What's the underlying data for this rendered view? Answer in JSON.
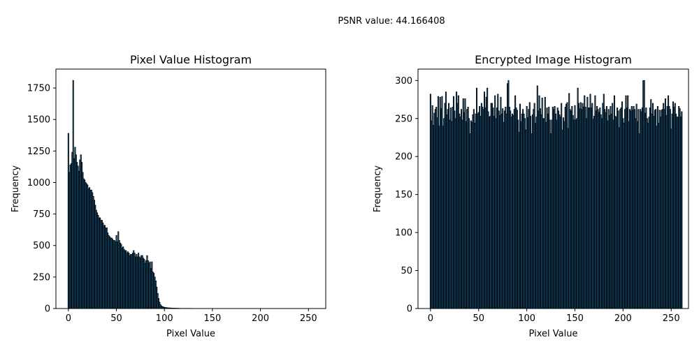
{
  "suptitle": "PSNR value: 44.166408",
  "chart_data": [
    {
      "type": "bar",
      "title": "Pixel Value Histogram",
      "xlabel": "Pixel Value",
      "ylabel": "Frequency",
      "xlim": [
        -13,
        268
      ],
      "ylim": [
        0,
        1900
      ],
      "xticks": [
        0,
        50,
        100,
        150,
        200,
        250
      ],
      "yticks": [
        0,
        250,
        500,
        750,
        1000,
        1250,
        1500,
        1750
      ],
      "bar_color": "#1f77b4",
      "edge_color": "#000000",
      "x_start": 0,
      "values": [
        1390,
        1080,
        1140,
        1150,
        1240,
        1810,
        1190,
        1280,
        1220,
        1160,
        1130,
        1090,
        1180,
        1220,
        1160,
        1080,
        1030,
        1020,
        1000,
        990,
        980,
        950,
        960,
        940,
        940,
        920,
        890,
        860,
        820,
        780,
        760,
        740,
        720,
        720,
        700,
        700,
        680,
        660,
        660,
        640,
        640,
        600,
        580,
        570,
        560,
        560,
        550,
        540,
        540,
        530,
        580,
        530,
        610,
        540,
        520,
        510,
        480,
        490,
        470,
        460,
        460,
        440,
        450,
        440,
        420,
        430,
        430,
        440,
        460,
        440,
        410,
        430,
        410,
        440,
        410,
        400,
        420,
        420,
        400,
        390,
        360,
        380,
        420,
        380,
        360,
        370,
        320,
        370,
        290,
        280,
        250,
        220,
        170,
        120,
        80,
        50,
        30,
        20,
        15,
        12,
        10,
        8,
        7,
        6,
        5,
        5,
        4,
        4,
        3,
        3,
        3,
        3,
        2,
        2,
        2,
        2,
        1,
        1,
        1,
        1,
        1,
        1,
        1,
        1,
        1,
        1,
        1,
        1,
        1,
        0,
        0,
        0,
        0,
        0,
        0,
        0,
        0,
        0,
        0,
        0,
        0,
        0,
        0,
        0,
        0,
        0,
        0,
        0,
        0,
        0,
        0,
        0,
        0,
        0,
        0,
        0,
        0,
        0,
        0,
        0,
        0,
        0,
        0,
        0,
        0,
        0,
        0,
        0,
        0,
        0,
        0,
        0,
        0,
        0,
        0,
        0,
        0,
        0,
        0,
        0,
        0,
        0,
        0,
        0,
        0,
        0,
        0,
        0,
        0,
        0,
        0,
        0,
        0,
        0,
        0,
        0,
        0,
        0,
        0,
        0,
        0,
        0,
        0,
        0,
        0,
        0,
        0,
        0,
        0,
        0,
        0,
        0,
        0,
        0,
        0,
        0,
        0,
        0,
        0,
        0,
        0,
        0,
        0,
        0,
        0,
        0,
        0,
        0,
        0,
        0,
        0,
        0,
        0,
        0,
        0,
        0,
        0,
        0,
        0,
        0,
        0,
        0,
        0,
        0,
        0,
        0,
        0,
        0,
        0,
        0,
        0,
        0,
        0,
        0,
        0,
        0,
        0
      ]
    },
    {
      "type": "bar",
      "title": "Encrypted Image Histogram",
      "xlabel": "Pixel Value",
      "ylabel": "Frequency",
      "xlim": [
        -13,
        268
      ],
      "ylim": [
        0,
        315
      ],
      "xticks": [
        0,
        50,
        100,
        150,
        200,
        250
      ],
      "yticks": [
        0,
        50,
        100,
        150,
        200,
        250,
        300
      ],
      "bar_color": "#1f77b4",
      "edge_color": "#000000",
      "x_start": 0,
      "values": [
        282,
        247,
        267,
        241,
        257,
        262,
        265,
        251,
        279,
        240,
        278,
        263,
        279,
        240,
        250,
        270,
        285,
        255,
        262,
        270,
        248,
        264,
        246,
        265,
        279,
        260,
        250,
        285,
        270,
        280,
        256,
        252,
        262,
        248,
        276,
        258,
        276,
        246,
        262,
        265,
        250,
        230,
        247,
        245,
        255,
        262,
        244,
        256,
        290,
        256,
        258,
        266,
        253,
        270,
        265,
        262,
        285,
        264,
        278,
        290,
        259,
        252,
        253,
        270,
        270,
        264,
        253,
        280,
        250,
        264,
        282,
        260,
        254,
        278,
        256,
        263,
        245,
        260,
        265,
        256,
        296,
        300,
        265,
        260,
        252,
        256,
        254,
        262,
        280,
        264,
        261,
        248,
        232,
        269,
        246,
        256,
        262,
        256,
        250,
        235,
        266,
        251,
        262,
        271,
        253,
        230,
        255,
        262,
        270,
        244,
        252,
        293,
        260,
        280,
        263,
        255,
        277,
        250,
        250,
        278,
        245,
        264,
        256,
        265,
        248,
        230,
        248,
        265,
        262,
        266,
        256,
        248,
        264,
        260,
        255,
        252,
        270,
        235,
        251,
        246,
        265,
        269,
        271,
        237,
        283,
        262,
        260,
        266,
        254,
        248,
        267,
        248,
        250,
        290,
        270,
        263,
        271,
        262,
        270,
        265,
        280,
        265,
        250,
        278,
        264,
        264,
        282,
        264,
        270,
        249,
        253,
        280,
        260,
        266,
        262,
        258,
        264,
        255,
        250,
        270,
        282,
        262,
        258,
        266,
        247,
        262,
        254,
        266,
        256,
        270,
        248,
        280,
        253,
        252,
        264,
        260,
        238,
        262,
        264,
        272,
        250,
        244,
        262,
        280,
        264,
        280,
        246,
        262,
        260,
        266,
        261,
        266,
        262,
        250,
        269,
        246,
        262,
        230,
        262,
        259,
        264,
        300,
        300,
        257,
        264,
        250,
        244,
        252,
        264,
        275,
        256,
        270,
        253,
        261,
        262,
        240,
        266,
        244,
        261,
        252,
        261,
        262,
        270,
        262,
        276,
        254,
        266,
        280,
        266,
        262,
        236,
        256,
        272,
        265,
        270,
        256,
        252,
        252,
        266,
        263,
        252,
        259
      ]
    }
  ]
}
